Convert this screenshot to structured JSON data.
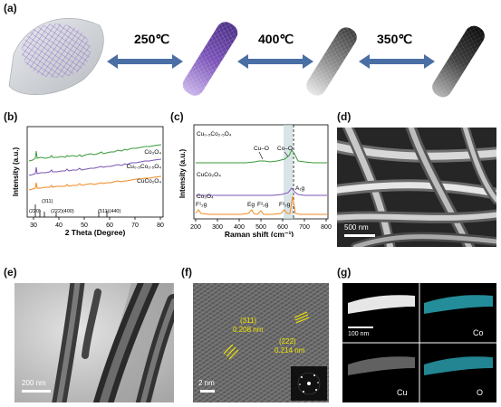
{
  "panel_a": {
    "label": "(a)",
    "temps": [
      "250℃",
      "400℃",
      "350℃"
    ]
  },
  "panel_b": {
    "label": "(b)",
    "xlabel": "2 Theta (Degree)",
    "ylabel": "Intensity (a.u.)",
    "xticks": [
      "30",
      "40",
      "50",
      "60",
      "70",
      "80"
    ],
    "series": [
      {
        "name": "Co₃O₄",
        "color": "#3a9a3a"
      },
      {
        "name": "Cu₀.₅Co₂.₅O₄",
        "color": "#7b55b5"
      },
      {
        "name": "CuCo₂O₄",
        "color": "#f08a20"
      }
    ],
    "annotations": [
      "(311)",
      "(220)",
      "(222)(400)",
      "(511)(440)"
    ]
  },
  "panel_c": {
    "label": "(c)",
    "xlabel": "Raman shift (cm⁻¹)",
    "ylabel": "Intensity (a.u.)",
    "xticks": [
      "200",
      "300",
      "400",
      "500",
      "600",
      "700",
      "800"
    ],
    "series": [
      {
        "name": "Cu₀.₅Co₂.₅O₄",
        "color": "#3a9a3a"
      },
      {
        "name": "CuCo₂O₄",
        "color": "#7b55b5"
      },
      {
        "name": "Co₃O₄",
        "color": "#f08a20"
      }
    ],
    "annotations": [
      "Cu–O",
      "Co–O",
      "F¹₂g",
      "Eg",
      "F²₂g",
      "F³₂g",
      "A₁g"
    ]
  },
  "panel_d": {
    "label": "(d)",
    "scale": "500 nm"
  },
  "panel_e": {
    "label": "(e)",
    "scale": "200 nm"
  },
  "panel_f": {
    "label": "(f)",
    "scale": "2 nm",
    "ann1a": "(311)",
    "ann1b": "0.208 nm",
    "ann2a": "(222)",
    "ann2b": "0.214 nm"
  },
  "panel_g": {
    "label": "(g)",
    "scale": "100 nm",
    "labels": [
      "Co",
      "Cu",
      "O"
    ]
  }
}
